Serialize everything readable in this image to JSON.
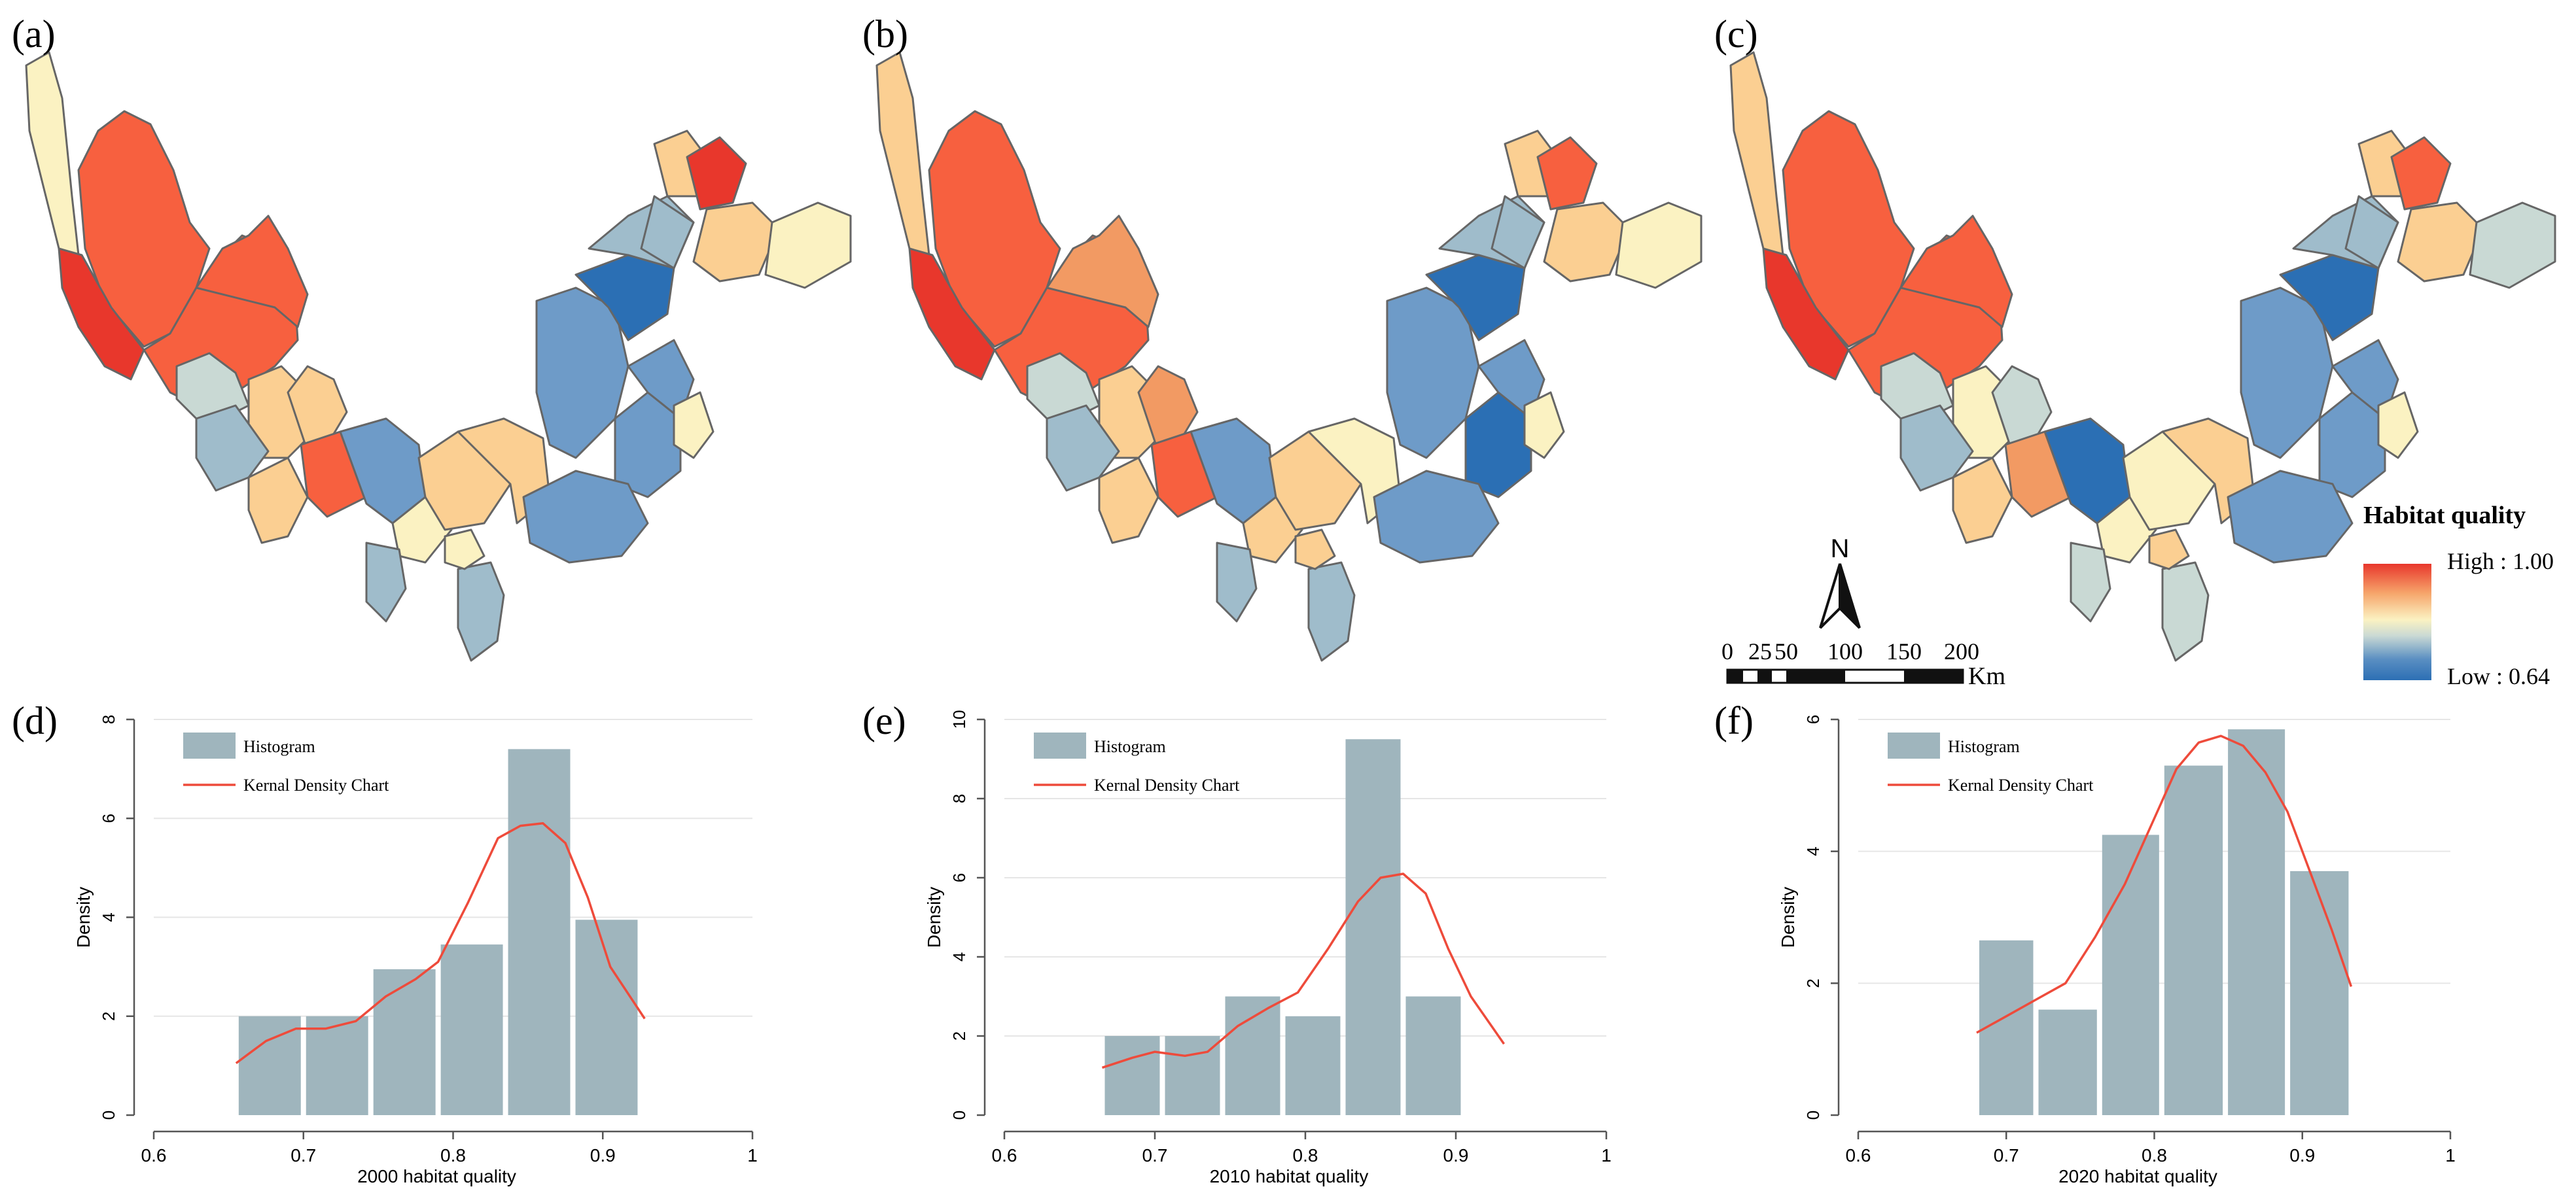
{
  "map_panels": [
    {
      "label": "(a)"
    },
    {
      "label": "(b)"
    },
    {
      "label": "(c)"
    }
  ],
  "map_legend": {
    "title": "Habitat quality",
    "high_label": "High : 1.00",
    "low_label": "Low : 0.64",
    "high_value": 1.0,
    "low_value": 0.64,
    "gradient_colors": [
      "#e8372c",
      "#f6a46a",
      "#fbf2c2",
      "#c9d9d4",
      "#5a8fc2",
      "#2c6fb4"
    ],
    "north_letter": "N",
    "scale_ticks": [
      "0",
      "25",
      "50",
      "100",
      "150",
      "200"
    ],
    "scale_unit": "Km"
  },
  "colors": {
    "bar": "#9fb5bd",
    "line": "#ee4b3b",
    "map_border": "#666666"
  },
  "chart_data": [
    {
      "type": "bar",
      "panel_label": "(d)",
      "xlabel": "2000 habitat quality",
      "ylabel": "Density",
      "legend": [
        "Histogram",
        "Kernal Density Chart"
      ],
      "xlim": [
        0.6,
        1.0
      ],
      "ylim": [
        0,
        8
      ],
      "xticks": [
        "0.6",
        "0.7",
        "0.8",
        "0.9",
        "1"
      ],
      "yticks": [
        "0",
        "2",
        "4",
        "6",
        "8"
      ],
      "bins": [
        {
          "start": 0.655,
          "end": 0.7,
          "value": 2.0
        },
        {
          "start": 0.7,
          "end": 0.745,
          "value": 2.0
        },
        {
          "start": 0.745,
          "end": 0.79,
          "value": 2.95
        },
        {
          "start": 0.79,
          "end": 0.835,
          "value": 3.45
        },
        {
          "start": 0.835,
          "end": 0.88,
          "value": 7.4
        },
        {
          "start": 0.88,
          "end": 0.925,
          "value": 3.95
        }
      ],
      "kde": {
        "x": [
          0.655,
          0.675,
          0.695,
          0.715,
          0.735,
          0.755,
          0.775,
          0.79,
          0.81,
          0.83,
          0.845,
          0.86,
          0.875,
          0.89,
          0.905,
          0.928
        ],
        "y": [
          1.05,
          1.5,
          1.75,
          1.75,
          1.9,
          2.4,
          2.75,
          3.1,
          4.3,
          5.6,
          5.85,
          5.9,
          5.5,
          4.4,
          3.0,
          1.95
        ]
      }
    },
    {
      "type": "bar",
      "panel_label": "(e)",
      "xlabel": "2010 habitat quality",
      "ylabel": "Density",
      "legend": [
        "Histogram",
        "Kernal Density Chart"
      ],
      "xlim": [
        0.6,
        1.0
      ],
      "ylim": [
        0,
        10
      ],
      "xticks": [
        "0.6",
        "0.7",
        "0.8",
        "0.9",
        "1"
      ],
      "yticks": [
        "0",
        "2",
        "4",
        "6",
        "8",
        "10"
      ],
      "bins": [
        {
          "start": 0.665,
          "end": 0.705,
          "value": 2.0
        },
        {
          "start": 0.705,
          "end": 0.745,
          "value": 2.0
        },
        {
          "start": 0.745,
          "end": 0.785,
          "value": 3.0
        },
        {
          "start": 0.785,
          "end": 0.825,
          "value": 2.5
        },
        {
          "start": 0.825,
          "end": 0.865,
          "value": 9.5
        },
        {
          "start": 0.865,
          "end": 0.905,
          "value": 3.0
        }
      ],
      "kde": {
        "x": [
          0.665,
          0.685,
          0.7,
          0.72,
          0.735,
          0.755,
          0.775,
          0.795,
          0.815,
          0.835,
          0.85,
          0.865,
          0.88,
          0.895,
          0.91,
          0.932
        ],
        "y": [
          1.2,
          1.45,
          1.6,
          1.5,
          1.6,
          2.25,
          2.7,
          3.1,
          4.2,
          5.4,
          6.0,
          6.1,
          5.6,
          4.2,
          3.0,
          1.8
        ]
      }
    },
    {
      "type": "bar",
      "panel_label": "(f)",
      "xlabel": "2020 habitat quality",
      "ylabel": "Density",
      "legend": [
        "Histogram",
        "Kernal Density Chart"
      ],
      "xlim": [
        0.6,
        1.0
      ],
      "ylim": [
        0,
        6
      ],
      "xticks": [
        "0.6",
        "0.7",
        "0.8",
        "0.9",
        "1"
      ],
      "yticks": [
        "0",
        "2",
        "4",
        "6"
      ],
      "bins": [
        {
          "start": 0.68,
          "end": 0.72,
          "value": 2.65
        },
        {
          "start": 0.72,
          "end": 0.763,
          "value": 1.6
        },
        {
          "start": 0.763,
          "end": 0.805,
          "value": 4.25
        },
        {
          "start": 0.805,
          "end": 0.848,
          "value": 5.3
        },
        {
          "start": 0.848,
          "end": 0.89,
          "value": 5.85
        },
        {
          "start": 0.89,
          "end": 0.933,
          "value": 3.7
        }
      ],
      "kde": {
        "x": [
          0.68,
          0.7,
          0.72,
          0.74,
          0.76,
          0.78,
          0.8,
          0.815,
          0.83,
          0.845,
          0.86,
          0.875,
          0.89,
          0.905,
          0.92,
          0.933
        ],
        "y": [
          1.25,
          1.5,
          1.75,
          2.0,
          2.7,
          3.5,
          4.5,
          5.25,
          5.65,
          5.75,
          5.6,
          5.2,
          4.6,
          3.7,
          2.8,
          1.95
        ]
      }
    }
  ]
}
